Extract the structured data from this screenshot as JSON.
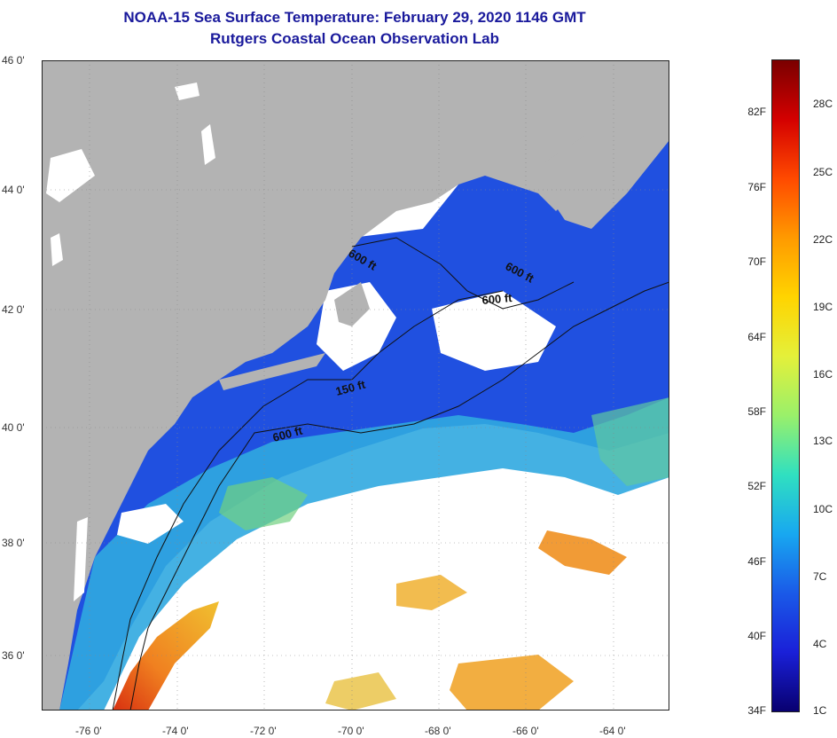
{
  "title": {
    "line1": "NOAA-15 Sea Surface Temperature:  February 29, 2020 1146 GMT",
    "line2": "Rutgers Coastal Ocean Observation Lab"
  },
  "map": {
    "lat_labels": [
      "46 0'",
      "44 0'",
      "42 0'",
      "40 0'",
      "38 0'",
      "36 0'"
    ],
    "lon_labels": [
      "-76 0'",
      "-74 0'",
      "-72 0'",
      "-70 0'",
      "-68 0'",
      "-66 0'",
      "-64 0'"
    ],
    "contour_labels": [
      "600 ft",
      "600 ft",
      "600 ft",
      "150 ft",
      "600 ft"
    ],
    "colors": {
      "land": "#b3b3b3",
      "cloud": "#ffffff",
      "cold": "#1f3fe0",
      "mid": "#3fa0e8",
      "warm": "#f0c020",
      "hot": "#f06010"
    }
  },
  "colorbar": {
    "fahrenheit": [
      "82F",
      "76F",
      "70F",
      "64F",
      "58F",
      "52F",
      "46F",
      "40F",
      "34F"
    ],
    "celsius": [
      "28C",
      "25C",
      "22C",
      "19C",
      "16C",
      "13C",
      "10C",
      "7C",
      "4C",
      "1C"
    ],
    "colors": [
      "#7a0000",
      "#d40000",
      "#ff4a00",
      "#ff9a00",
      "#ffd400",
      "#e4f03a",
      "#9af06a",
      "#30e0c0",
      "#18a8f0",
      "#1a5ae8",
      "#1a20d8",
      "#080070"
    ]
  }
}
